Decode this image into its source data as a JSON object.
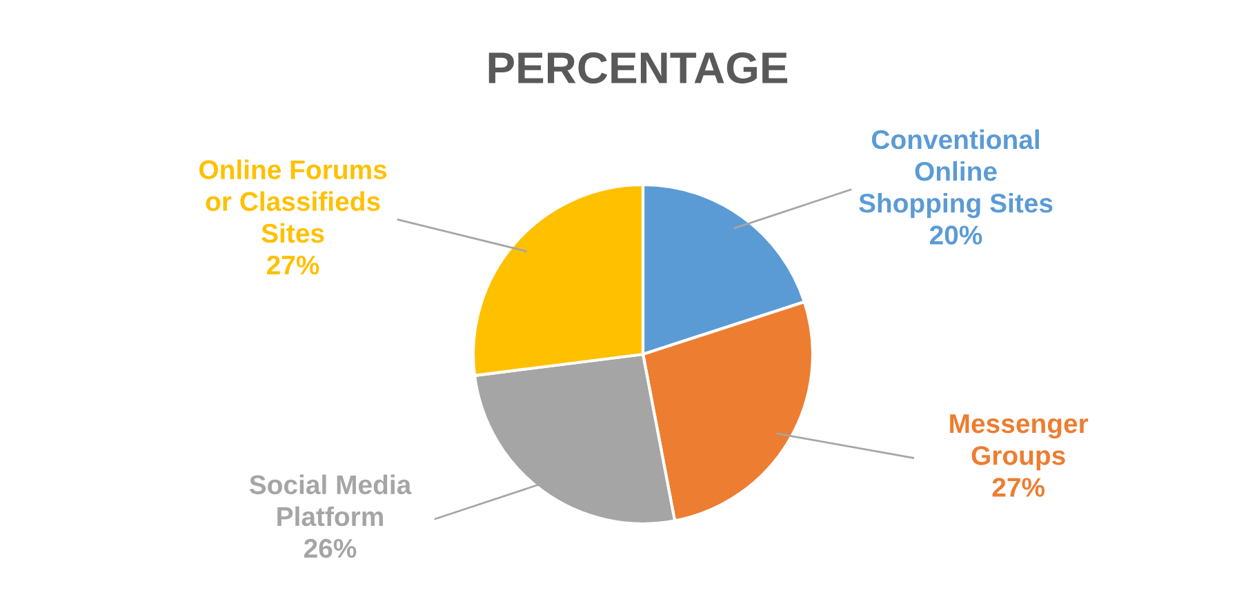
{
  "chart_data": {
    "type": "pie",
    "title": "PERCENTAGE",
    "categories": [
      "Conventional Online Shopping Sites",
      "Messenger Groups",
      "Social Media Platform",
      "Online Forums or Classifieds Sites"
    ],
    "values": [
      20,
      27,
      26,
      27
    ],
    "colors": [
      "#5b9bd5",
      "#ed7d31",
      "#a5a5a5",
      "#ffc000"
    ],
    "value_labels": [
      "20%",
      "27%",
      "26%",
      "27%"
    ],
    "legend": false
  }
}
